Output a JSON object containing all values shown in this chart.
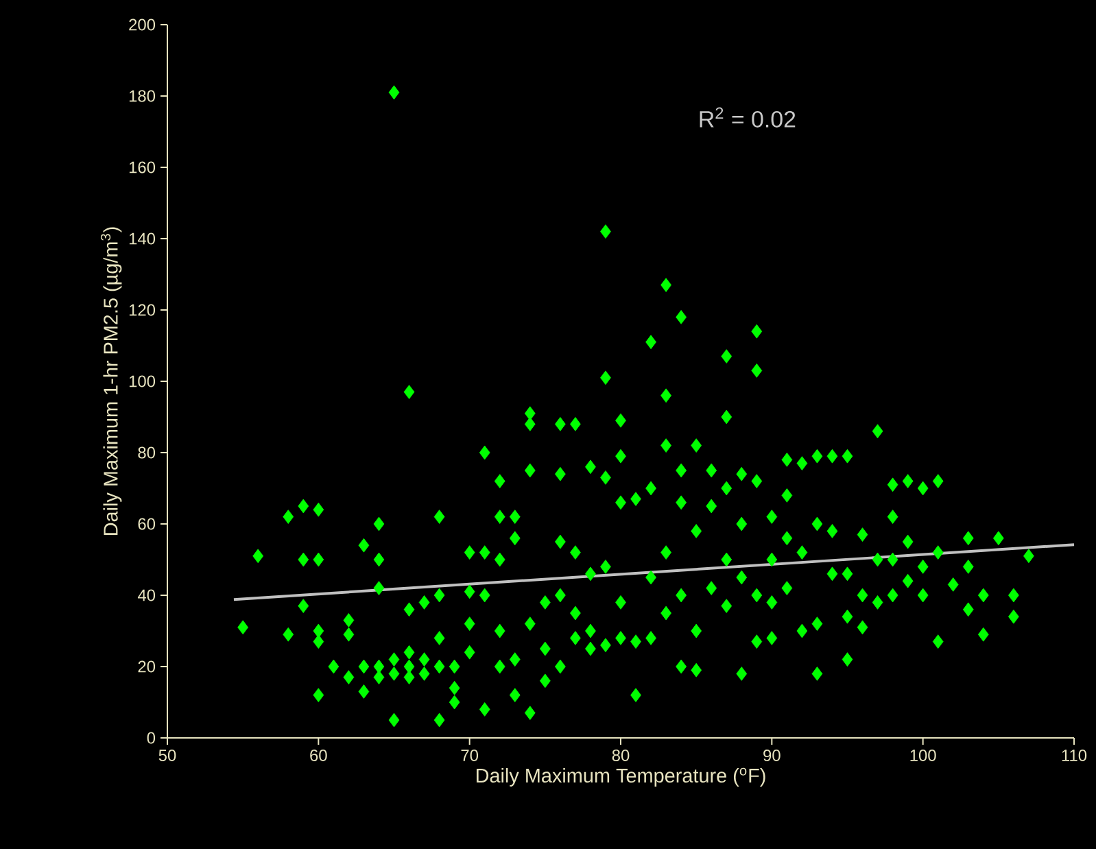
{
  "chart_data": {
    "type": "scatter",
    "xlabel": "Daily Maximum Temperature ($^{o}$F)",
    "ylabel": "Daily Maximum 1-hr PM2.5 (µg/m$^{3}$)",
    "annotations": [
      "R$^{2}$ = 0.02"
    ],
    "xlim": [
      50,
      110
    ],
    "ylim": [
      0,
      200
    ],
    "xticks": [
      50,
      60,
      70,
      80,
      90,
      100,
      110
    ],
    "yticks": [
      0,
      20,
      40,
      60,
      80,
      100,
      120,
      140,
      160,
      180,
      200
    ],
    "grid": false,
    "marker": "diamond",
    "series": [
      {
        "color": "#00ff00",
        "x": [
          55,
          56,
          58,
          58,
          59,
          59,
          59,
          60,
          60,
          60,
          60,
          60,
          61,
          62,
          62,
          62,
          63,
          63,
          63,
          64,
          64,
          64,
          64,
          64,
          65,
          65,
          65,
          65,
          66,
          66,
          66,
          66,
          66,
          67,
          67,
          67,
          68,
          68,
          68,
          68,
          68,
          69,
          69,
          69,
          70,
          70,
          70,
          70,
          71,
          71,
          71,
          71,
          72,
          72,
          72,
          72,
          72,
          73,
          73,
          73,
          73,
          74,
          74,
          74,
          74,
          74,
          75,
          75,
          75,
          76,
          76,
          76,
          76,
          76,
          77,
          77,
          77,
          77,
          78,
          78,
          78,
          78,
          79,
          79,
          79,
          79,
          79,
          80,
          80,
          80,
          80,
          80,
          81,
          81,
          81,
          82,
          82,
          82,
          82,
          83,
          83,
          83,
          83,
          83,
          84,
          84,
          84,
          84,
          84,
          85,
          85,
          85,
          85,
          86,
          86,
          86,
          87,
          87,
          87,
          87,
          87,
          88,
          88,
          88,
          88,
          89,
          89,
          89,
          89,
          89,
          90,
          90,
          90,
          90,
          91,
          91,
          91,
          91,
          92,
          92,
          92,
          93,
          93,
          93,
          93,
          94,
          94,
          94,
          95,
          95,
          95,
          95,
          96,
          96,
          96,
          97,
          97,
          97,
          98,
          98,
          98,
          98,
          99,
          99,
          99,
          100,
          100,
          100,
          101,
          101,
          101,
          102,
          103,
          103,
          103,
          104,
          104,
          105,
          106,
          106,
          107
        ],
        "values": [
          31,
          51,
          62,
          29,
          65,
          50,
          37,
          64,
          50,
          30,
          27,
          12,
          20,
          33,
          29,
          17,
          54,
          20,
          13,
          60,
          50,
          42,
          20,
          17,
          181,
          22,
          18,
          5,
          97,
          36,
          24,
          20,
          17,
          38,
          22,
          18,
          62,
          40,
          28,
          20,
          5,
          20,
          14,
          10,
          52,
          41,
          32,
          24,
          80,
          52,
          40,
          8,
          72,
          62,
          50,
          30,
          20,
          62,
          56,
          22,
          12,
          91,
          88,
          75,
          32,
          7,
          38,
          25,
          16,
          88,
          74,
          55,
          40,
          20,
          88,
          52,
          35,
          28,
          76,
          46,
          30,
          25,
          142,
          101,
          73,
          48,
          26,
          89,
          79,
          66,
          38,
          28,
          67,
          12,
          27,
          111,
          70,
          45,
          28,
          127,
          96,
          82,
          52,
          35,
          118,
          75,
          66,
          40,
          20,
          82,
          58,
          30,
          19,
          75,
          65,
          42,
          107,
          90,
          70,
          50,
          37,
          74,
          60,
          45,
          18,
          114,
          103,
          72,
          40,
          27,
          62,
          50,
          38,
          28,
          78,
          68,
          56,
          42,
          77,
          52,
          30,
          79,
          60,
          32,
          18,
          79,
          58,
          46,
          79,
          46,
          34,
          22,
          57,
          40,
          31,
          86,
          50,
          38,
          71,
          62,
          50,
          40,
          72,
          55,
          44,
          70,
          48,
          40,
          72,
          52,
          27,
          43,
          56,
          48,
          36,
          40,
          29,
          56,
          40,
          34,
          51
        ]
      },
      {
        "type": "line",
        "color": "#c0c0c0",
        "marker": "none",
        "line_style": "solid",
        "x": [
          54.4,
          110
        ],
        "values": [
          38.8,
          54.2
        ]
      }
    ]
  }
}
